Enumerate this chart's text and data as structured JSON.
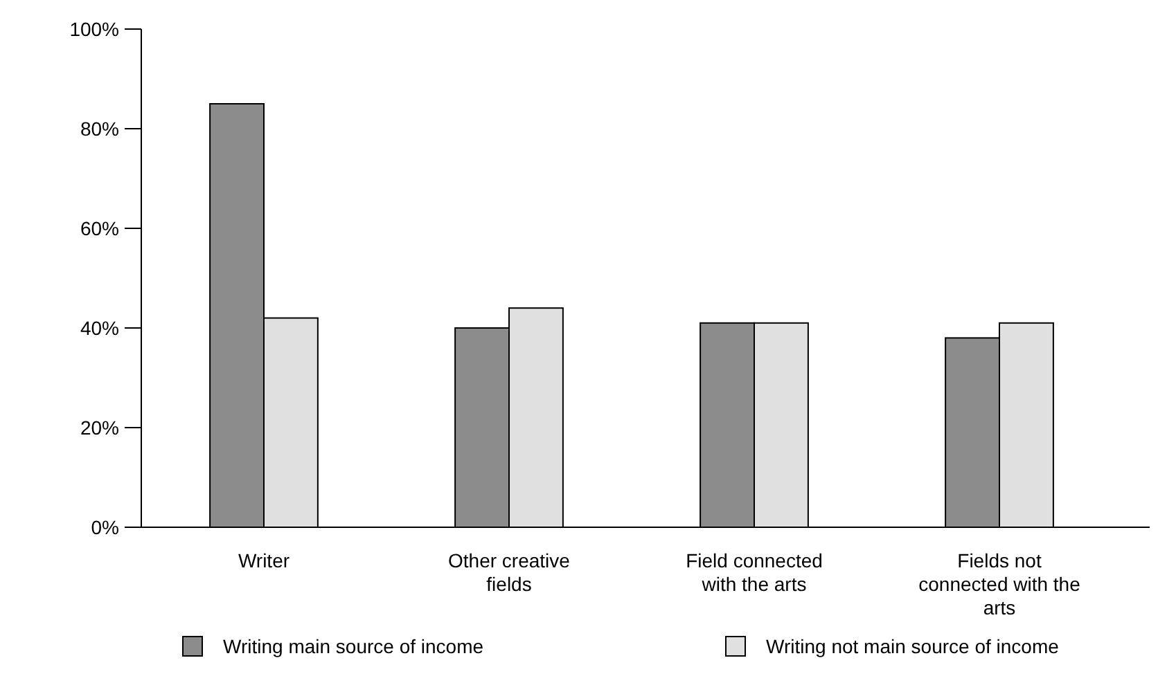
{
  "chart_data": {
    "type": "bar",
    "categories": [
      "Writer",
      "Other creative fields",
      "Field connected with the arts",
      "Fields not connected with the arts"
    ],
    "series": [
      {
        "name": "Writing main source of income",
        "color": "#8c8c8c",
        "values": [
          85,
          40,
          41,
          38
        ]
      },
      {
        "name": "Writing not main source of income",
        "color": "#e0e0e0",
        "values": [
          42,
          44,
          41,
          41
        ]
      }
    ],
    "ylim": [
      0,
      100
    ],
    "yticks": [
      {
        "value": 0,
        "label": "0%"
      },
      {
        "value": 20,
        "label": "20%"
      },
      {
        "value": 40,
        "label": "40%"
      },
      {
        "value": 60,
        "label": "60%"
      },
      {
        "value": 80,
        "label": "80%"
      },
      {
        "value": 100,
        "label": "100%"
      }
    ],
    "grid": false,
    "legend": "bottom"
  }
}
